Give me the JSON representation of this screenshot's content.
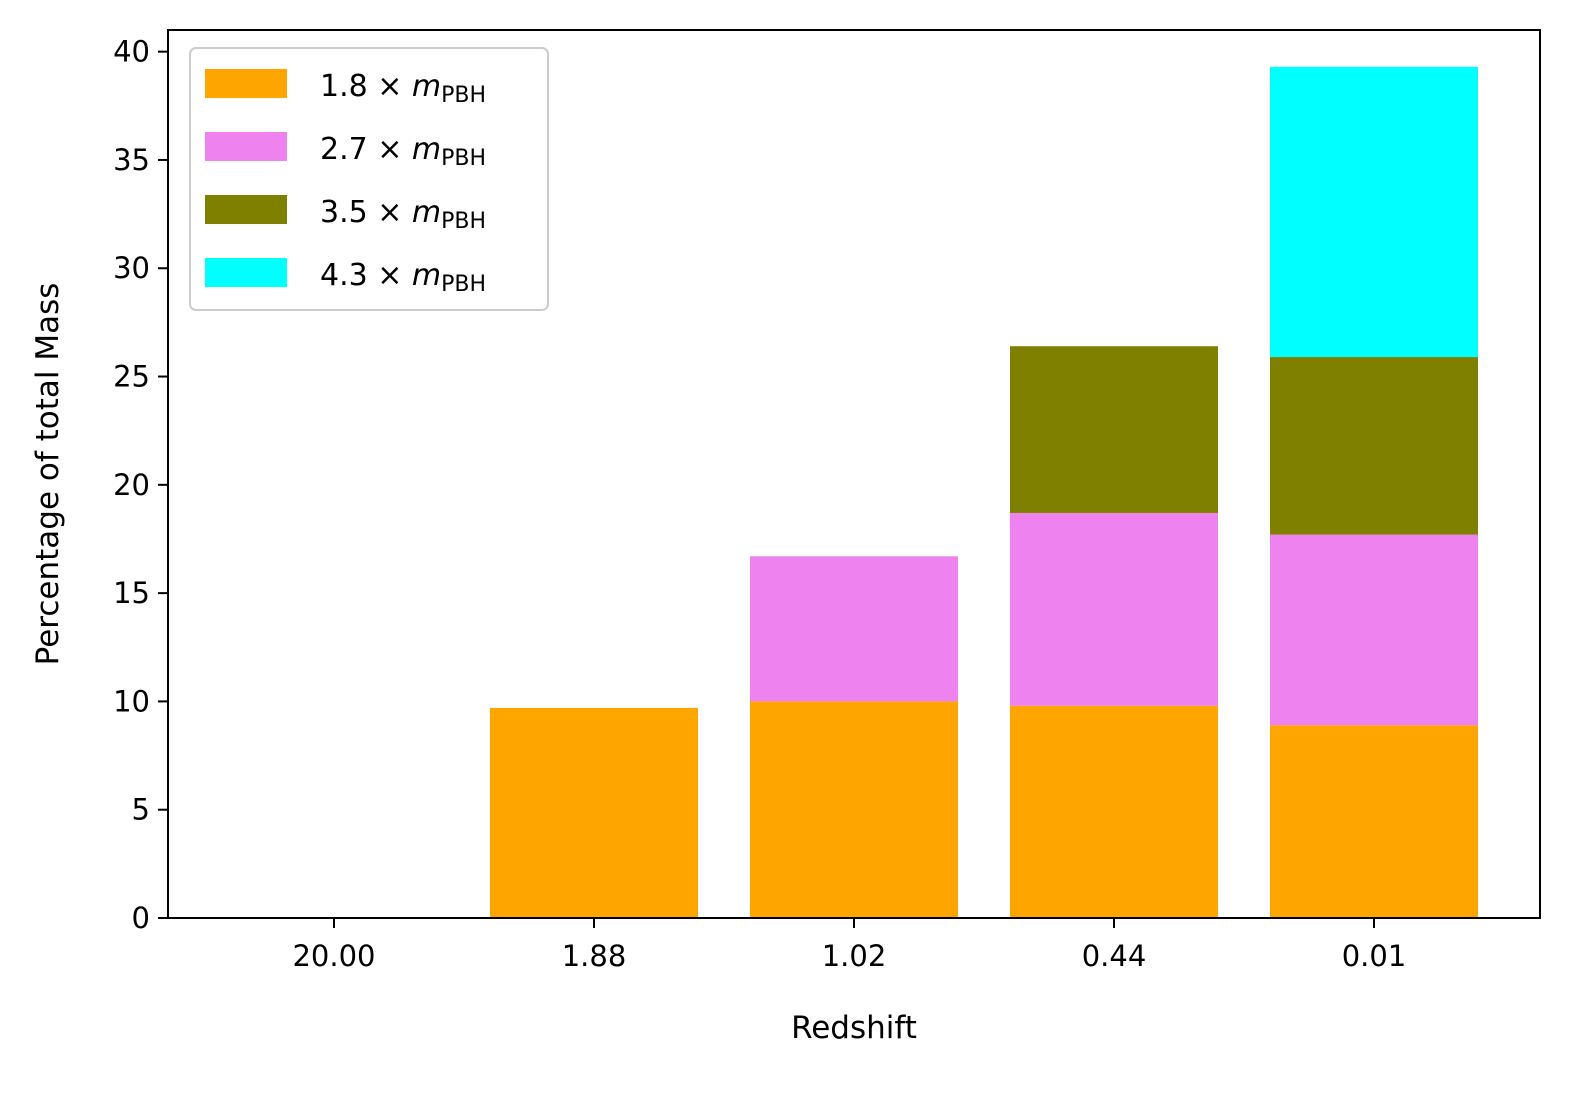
{
  "chart_data": {
    "type": "bar",
    "stacked": true,
    "title": "",
    "xlabel": "Redshift",
    "ylabel": "Percentage of total Mass",
    "categories": [
      "20.00",
      "1.88",
      "1.02",
      "0.44",
      "0.01"
    ],
    "ylim": [
      0,
      41
    ],
    "yticks": [
      0,
      5,
      10,
      15,
      20,
      25,
      30,
      35,
      40
    ],
    "grid": false,
    "legend_position": "top-left",
    "series": [
      {
        "name": "1.8",
        "label_factor": "1.8",
        "label_var": "m",
        "label_sub": "PBH",
        "color": "#ffa500",
        "values": [
          0,
          9.7,
          10.0,
          9.8,
          8.9
        ]
      },
      {
        "name": "2.7",
        "label_factor": "2.7",
        "label_var": "m",
        "label_sub": "PBH",
        "color": "#ee82ee",
        "values": [
          0,
          0,
          6.7,
          8.9,
          8.8
        ]
      },
      {
        "name": "3.5",
        "label_factor": "3.5",
        "label_var": "m",
        "label_sub": "PBH",
        "color": "#808000",
        "values": [
          0,
          0,
          0,
          7.7,
          8.2
        ]
      },
      {
        "name": "4.3",
        "label_factor": "4.3",
        "label_var": "m",
        "label_sub": "PBH",
        "color": "#00ffff",
        "values": [
          0,
          0,
          0,
          0,
          13.4
        ]
      }
    ]
  }
}
